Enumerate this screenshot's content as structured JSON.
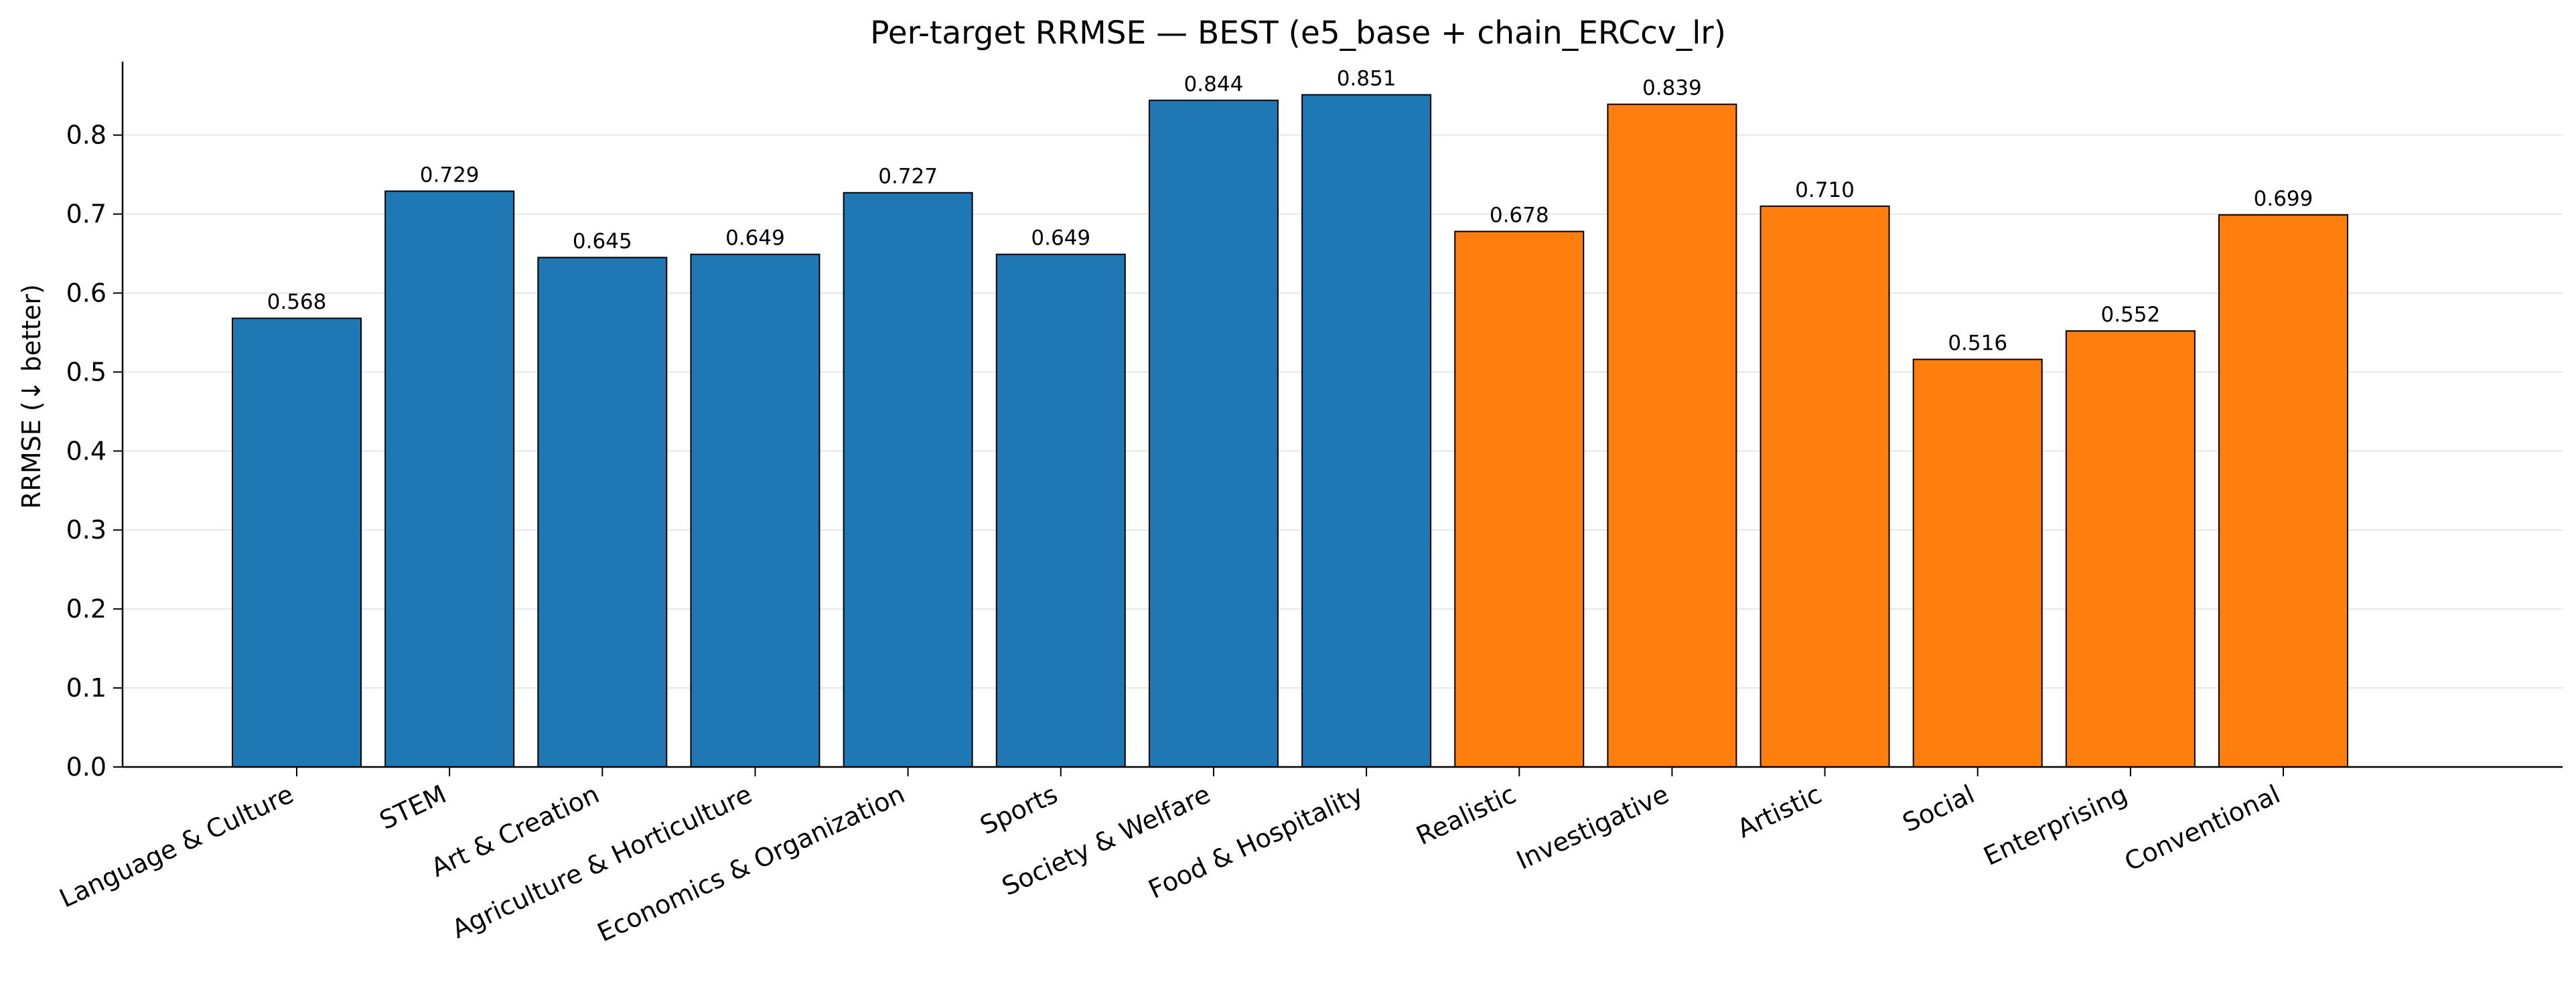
{
  "chart_data": {
    "type": "bar",
    "title": "Per-target RRMSE — BEST (e5_base + chain_ERCcv_lr)",
    "xlabel": "",
    "ylabel": "RRMSE (↓ better)",
    "ylim": [
      0,
      0.893
    ],
    "yticks": [
      0.0,
      0.1,
      0.2,
      0.3,
      0.4,
      0.5,
      0.6,
      0.7,
      0.8
    ],
    "ytick_labels": [
      "0.0",
      "0.1",
      "0.2",
      "0.3",
      "0.4",
      "0.5",
      "0.6",
      "0.7",
      "0.8"
    ],
    "grid": "horizontal",
    "categories": [
      "Language & Culture",
      "STEM",
      "Art & Creation",
      "Agriculture & Horticulture",
      "Economics & Organization",
      "Sports",
      "Society & Welfare",
      "Food & Hospitality",
      "Realistic",
      "Investigative",
      "Artistic",
      "Social",
      "Enterprising",
      "Conventional"
    ],
    "values": [
      0.568,
      0.729,
      0.645,
      0.649,
      0.727,
      0.649,
      0.844,
      0.851,
      0.678,
      0.839,
      0.71,
      0.516,
      0.552,
      0.699
    ],
    "value_labels": [
      "0.568",
      "0.729",
      "0.645",
      "0.649",
      "0.727",
      "0.649",
      "0.844",
      "0.851",
      "0.678",
      "0.839",
      "0.710",
      "0.516",
      "0.552",
      "0.699"
    ],
    "bar_colors": [
      "#1f77b4",
      "#1f77b4",
      "#1f77b4",
      "#1f77b4",
      "#1f77b4",
      "#1f77b4",
      "#1f77b4",
      "#1f77b4",
      "#ff7f0e",
      "#ff7f0e",
      "#ff7f0e",
      "#ff7f0e",
      "#ff7f0e",
      "#ff7f0e"
    ],
    "edge_color": "#000000",
    "grid_color": "#e6e6e6"
  }
}
